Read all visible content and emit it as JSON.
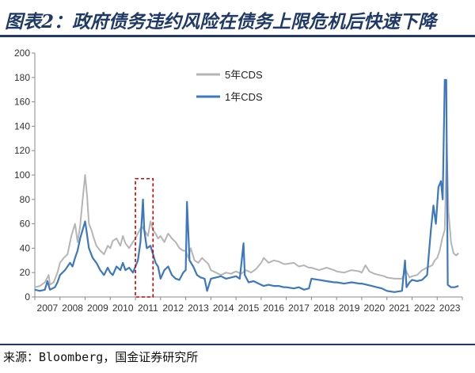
{
  "header": {
    "title": "图表2：政府债务违约风险在债务上限危机后快速下降"
  },
  "footer": {
    "source": "来源：Bloomberg，国金证券研究所"
  },
  "colors": {
    "title": "#1f3a66",
    "series_5y": "#b5b5b5",
    "series_1y": "#3d78be",
    "highlight_box": "#c00000"
  },
  "chart_data": {
    "type": "line",
    "title": "",
    "xlabel": "",
    "ylabel": "",
    "ylim": [
      0,
      200
    ],
    "yticks": [
      0,
      20,
      40,
      60,
      80,
      100,
      120,
      140,
      160,
      180,
      200
    ],
    "xlim": [
      2007,
      2024
    ],
    "xticks": [
      "2007",
      "2008",
      "2009",
      "2010",
      "2011",
      "2012",
      "2013",
      "2014",
      "2015",
      "2016",
      "2017",
      "2018",
      "2019",
      "2020",
      "2021",
      "2022",
      "2023"
    ],
    "grid": false,
    "legend": "top-center",
    "highlight_range": [
      2011.0,
      2011.7
    ],
    "series": [
      {
        "name": "5年CDS",
        "color": "#b5b5b5",
        "points": [
          [
            2007.0,
            8
          ],
          [
            2007.2,
            9
          ],
          [
            2007.4,
            12
          ],
          [
            2007.55,
            18
          ],
          [
            2007.6,
            10
          ],
          [
            2007.75,
            12
          ],
          [
            2007.9,
            20
          ],
          [
            2008.0,
            28
          ],
          [
            2008.15,
            32
          ],
          [
            2008.3,
            35
          ],
          [
            2008.45,
            50
          ],
          [
            2008.6,
            60
          ],
          [
            2008.7,
            45
          ],
          [
            2008.8,
            58
          ],
          [
            2008.9,
            80
          ],
          [
            2009.0,
            100
          ],
          [
            2009.08,
            82
          ],
          [
            2009.15,
            60
          ],
          [
            2009.25,
            55
          ],
          [
            2009.35,
            48
          ],
          [
            2009.45,
            42
          ],
          [
            2009.6,
            38
          ],
          [
            2009.75,
            35
          ],
          [
            2009.9,
            42
          ],
          [
            2010.0,
            40
          ],
          [
            2010.1,
            46
          ],
          [
            2010.25,
            48
          ],
          [
            2010.4,
            42
          ],
          [
            2010.5,
            50
          ],
          [
            2010.6,
            44
          ],
          [
            2010.75,
            40
          ],
          [
            2010.9,
            45
          ],
          [
            2011.0,
            48
          ],
          [
            2011.1,
            52
          ],
          [
            2011.25,
            58
          ],
          [
            2011.35,
            55
          ],
          [
            2011.5,
            50
          ],
          [
            2011.6,
            62
          ],
          [
            2011.7,
            55
          ],
          [
            2011.8,
            52
          ],
          [
            2011.9,
            48
          ],
          [
            2012.0,
            50
          ],
          [
            2012.15,
            45
          ],
          [
            2012.3,
            52
          ],
          [
            2012.45,
            48
          ],
          [
            2012.6,
            45
          ],
          [
            2012.75,
            40
          ],
          [
            2012.9,
            38
          ],
          [
            2013.0,
            38
          ],
          [
            2013.1,
            32
          ],
          [
            2013.2,
            40
          ],
          [
            2013.35,
            30
          ],
          [
            2013.5,
            28
          ],
          [
            2013.65,
            32
          ],
          [
            2013.75,
            30
          ],
          [
            2013.9,
            27
          ],
          [
            2014.0,
            22
          ],
          [
            2014.2,
            20
          ],
          [
            2014.4,
            18
          ],
          [
            2014.6,
            20
          ],
          [
            2014.8,
            19
          ],
          [
            2015.0,
            21
          ],
          [
            2015.2,
            19
          ],
          [
            2015.4,
            22
          ],
          [
            2015.6,
            20
          ],
          [
            2015.8,
            23
          ],
          [
            2016.0,
            28
          ],
          [
            2016.1,
            32
          ],
          [
            2016.3,
            28
          ],
          [
            2016.5,
            30
          ],
          [
            2016.7,
            29
          ],
          [
            2016.9,
            27
          ],
          [
            2017.0,
            27
          ],
          [
            2017.3,
            28
          ],
          [
            2017.5,
            25
          ],
          [
            2017.7,
            26
          ],
          [
            2017.9,
            24
          ],
          [
            2018.0,
            24
          ],
          [
            2018.3,
            22
          ],
          [
            2018.6,
            24
          ],
          [
            2018.9,
            22
          ],
          [
            2019.0,
            21
          ],
          [
            2019.3,
            20
          ],
          [
            2019.6,
            22
          ],
          [
            2019.9,
            21
          ],
          [
            2020.0,
            20
          ],
          [
            2020.15,
            26
          ],
          [
            2020.3,
            21
          ],
          [
            2020.5,
            19
          ],
          [
            2020.7,
            18
          ],
          [
            2020.9,
            17
          ],
          [
            2021.0,
            16
          ],
          [
            2021.3,
            15
          ],
          [
            2021.6,
            15
          ],
          [
            2021.75,
            22
          ],
          [
            2021.9,
            16
          ],
          [
            2022.0,
            17
          ],
          [
            2022.2,
            18
          ],
          [
            2022.4,
            22
          ],
          [
            2022.6,
            24
          ],
          [
            2022.8,
            26
          ],
          [
            2022.9,
            30
          ],
          [
            2023.0,
            32
          ],
          [
            2023.1,
            38
          ],
          [
            2023.2,
            48
          ],
          [
            2023.3,
            55
          ],
          [
            2023.38,
            125
          ],
          [
            2023.45,
            70
          ],
          [
            2023.55,
            45
          ],
          [
            2023.65,
            36
          ],
          [
            2023.75,
            34
          ],
          [
            2023.85,
            36
          ]
        ]
      },
      {
        "name": "1年CDS",
        "color": "#3d78be",
        "points": [
          [
            2007.0,
            6
          ],
          [
            2007.2,
            5
          ],
          [
            2007.4,
            6
          ],
          [
            2007.5,
            13
          ],
          [
            2007.6,
            6
          ],
          [
            2007.8,
            8
          ],
          [
            2007.9,
            12
          ],
          [
            2008.0,
            18
          ],
          [
            2008.2,
            22
          ],
          [
            2008.4,
            28
          ],
          [
            2008.5,
            25
          ],
          [
            2008.6,
            32
          ],
          [
            2008.7,
            38
          ],
          [
            2008.8,
            48
          ],
          [
            2008.9,
            55
          ],
          [
            2009.0,
            62
          ],
          [
            2009.05,
            55
          ],
          [
            2009.15,
            40
          ],
          [
            2009.3,
            32
          ],
          [
            2009.45,
            28
          ],
          [
            2009.6,
            22
          ],
          [
            2009.75,
            18
          ],
          [
            2009.9,
            24
          ],
          [
            2010.0,
            20
          ],
          [
            2010.1,
            18
          ],
          [
            2010.25,
            25
          ],
          [
            2010.4,
            22
          ],
          [
            2010.5,
            28
          ],
          [
            2010.6,
            22
          ],
          [
            2010.75,
            24
          ],
          [
            2010.9,
            20
          ],
          [
            2011.0,
            25
          ],
          [
            2011.1,
            30
          ],
          [
            2011.2,
            45
          ],
          [
            2011.3,
            80
          ],
          [
            2011.35,
            55
          ],
          [
            2011.45,
            40
          ],
          [
            2011.6,
            42
          ],
          [
            2011.7,
            35
          ],
          [
            2011.8,
            28
          ],
          [
            2011.9,
            25
          ],
          [
            2012.0,
            15
          ],
          [
            2012.15,
            22
          ],
          [
            2012.3,
            25
          ],
          [
            2012.45,
            18
          ],
          [
            2012.6,
            15
          ],
          [
            2012.75,
            14
          ],
          [
            2012.9,
            20
          ],
          [
            2013.0,
            22
          ],
          [
            2013.05,
            78
          ],
          [
            2013.15,
            30
          ],
          [
            2013.3,
            25
          ],
          [
            2013.45,
            18
          ],
          [
            2013.6,
            16
          ],
          [
            2013.75,
            15
          ],
          [
            2013.85,
            5
          ],
          [
            2014.0,
            15
          ],
          [
            2014.2,
            16
          ],
          [
            2014.4,
            17
          ],
          [
            2014.6,
            15
          ],
          [
            2014.8,
            16
          ],
          [
            2015.0,
            17
          ],
          [
            2015.15,
            15
          ],
          [
            2015.3,
            44
          ],
          [
            2015.35,
            18
          ],
          [
            2015.5,
            12
          ],
          [
            2015.7,
            13
          ],
          [
            2015.9,
            11
          ],
          [
            2016.0,
            10
          ],
          [
            2016.1,
            9
          ],
          [
            2016.3,
            10
          ],
          [
            2016.5,
            9
          ],
          [
            2016.7,
            9
          ],
          [
            2016.9,
            8
          ],
          [
            2017.0,
            8
          ],
          [
            2017.3,
            7
          ],
          [
            2017.5,
            8
          ],
          [
            2017.7,
            6
          ],
          [
            2017.9,
            7
          ],
          [
            2018.0,
            15
          ],
          [
            2018.3,
            14
          ],
          [
            2018.6,
            13
          ],
          [
            2018.9,
            12
          ],
          [
            2019.0,
            12
          ],
          [
            2019.3,
            11
          ],
          [
            2019.6,
            12
          ],
          [
            2019.9,
            11
          ],
          [
            2020.0,
            11
          ],
          [
            2020.2,
            10
          ],
          [
            2020.4,
            9
          ],
          [
            2020.6,
            8
          ],
          [
            2020.8,
            7
          ],
          [
            2021.0,
            5
          ],
          [
            2021.3,
            4
          ],
          [
            2021.6,
            5
          ],
          [
            2021.72,
            30
          ],
          [
            2021.78,
            8
          ],
          [
            2021.9,
            12
          ],
          [
            2022.0,
            14
          ],
          [
            2022.2,
            13
          ],
          [
            2022.4,
            14
          ],
          [
            2022.6,
            18
          ],
          [
            2022.75,
            55
          ],
          [
            2022.85,
            75
          ],
          [
            2022.95,
            60
          ],
          [
            2023.05,
            90
          ],
          [
            2023.15,
            95
          ],
          [
            2023.22,
            80
          ],
          [
            2023.3,
            178
          ],
          [
            2023.36,
            178
          ],
          [
            2023.42,
            10
          ],
          [
            2023.55,
            8
          ],
          [
            2023.7,
            8
          ],
          [
            2023.85,
            9
          ]
        ]
      }
    ]
  }
}
